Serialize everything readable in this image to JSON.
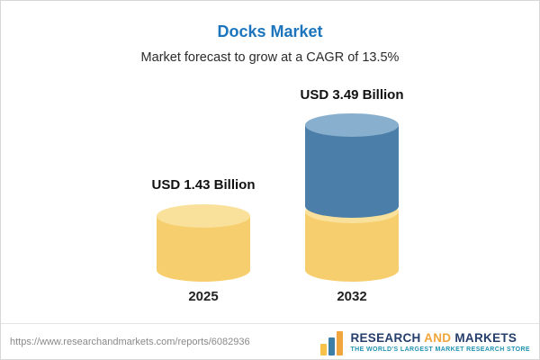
{
  "header": {
    "title": "Docks Market",
    "subtitle": "Market forecast to grow at a CAGR of 13.5%"
  },
  "chart_data": {
    "type": "bar",
    "title": "Docks Market",
    "subtitle": "Market forecast to grow at a CAGR of 13.5%",
    "categories": [
      "2025",
      "2032"
    ],
    "values": [
      1.43,
      3.49
    ],
    "value_labels": [
      "USD 1.43 Billion",
      "USD 3.49 Billion"
    ],
    "unit": "USD Billion",
    "cagr_pct": 13.5,
    "legend": false,
    "colors": {
      "bar_2025": "#F6CE6D",
      "bar_2032_segment_top": "#4B7EA8",
      "bar_2032_segment_bottom": "#F6CE6D",
      "title": "#1C75BC"
    }
  },
  "bars": [
    {
      "year": "2025",
      "label": "USD 1.43 Billion"
    },
    {
      "year": "2032",
      "label": "USD 3.49 Billion"
    }
  ],
  "footer": {
    "url": "https://www.researchandmarkets.com/reports/6082936",
    "logo": {
      "word1": "RESEARCH",
      "word2": "AND",
      "word3": "MARKETS",
      "tagline": "THE WORLD'S LARGEST MARKET RESEARCH STORE"
    }
  }
}
